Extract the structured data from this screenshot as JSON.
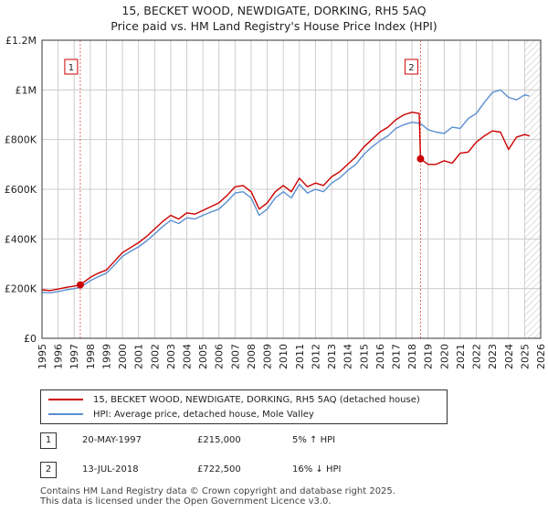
{
  "title_line1": "15, BECKET WOOD, NEWDIGATE, DORKING, RH5 5AQ",
  "title_line2": "Price paid vs. HM Land Registry's House Price Index (HPI)",
  "colors": {
    "property": "#cc0000",
    "hpi": "#5b8fd0",
    "grid": "#cccccc",
    "marker": "#cc0000",
    "hatch": "#bbbbbb"
  },
  "chart_data": {
    "type": "line",
    "xlim": [
      1995,
      2026
    ],
    "ylim": [
      0,
      1200000
    ],
    "ytick_values": [
      0,
      200000,
      400000,
      600000,
      800000,
      1000000,
      1200000
    ],
    "ytick_labels": [
      "£0",
      "£200K",
      "£400K",
      "£600K",
      "£800K",
      "£1M",
      "£1.2M"
    ],
    "xtick_labels": [
      "1995",
      "1996",
      "1997",
      "1998",
      "1999",
      "2000",
      "2001",
      "2002",
      "2003",
      "2004",
      "2005",
      "2006",
      "2007",
      "2008",
      "2009",
      "2010",
      "2011",
      "2012",
      "2013",
      "2014",
      "2015",
      "2016",
      "2017",
      "2018",
      "2019",
      "2020",
      "2021",
      "2022",
      "2023",
      "2024",
      "2025",
      "2026"
    ],
    "grid": true,
    "hatched_future_from": 2025.0,
    "series": [
      {
        "name": "15, BECKET WOOD, NEWDIGATE, DORKING, RH5 5AQ (detached house)",
        "x": [
          1995.0,
          1995.5,
          1996.0,
          1996.5,
          1997.0,
          1997.38,
          1998.0,
          1998.5,
          1999.0,
          1999.5,
          2000.0,
          2000.5,
          2001.0,
          2001.5,
          2002.0,
          2002.5,
          2003.0,
          2003.5,
          2004.0,
          2004.5,
          2005.0,
          2005.5,
          2006.0,
          2006.5,
          2007.0,
          2007.5,
          2008.0,
          2008.5,
          2009.0,
          2009.5,
          2010.0,
          2010.5,
          2011.0,
          2011.5,
          2012.0,
          2012.5,
          2013.0,
          2013.5,
          2014.0,
          2014.5,
          2015.0,
          2015.5,
          2016.0,
          2016.5,
          2017.0,
          2017.5,
          2018.0,
          2018.45,
          2018.53,
          2019.0,
          2019.5,
          2020.0,
          2020.5,
          2021.0,
          2021.5,
          2022.0,
          2022.5,
          2023.0,
          2023.5,
          2024.0,
          2024.5,
          2025.0,
          2025.3
        ],
        "values": [
          195000,
          192000,
          198000,
          205000,
          210000,
          215000,
          245000,
          262000,
          275000,
          310000,
          345000,
          365000,
          385000,
          410000,
          440000,
          470000,
          495000,
          480000,
          505000,
          500000,
          515000,
          530000,
          545000,
          575000,
          610000,
          615000,
          590000,
          520000,
          545000,
          590000,
          615000,
          590000,
          645000,
          610000,
          625000,
          615000,
          650000,
          670000,
          700000,
          730000,
          770000,
          800000,
          830000,
          850000,
          880000,
          900000,
          910000,
          905000,
          722500,
          700000,
          700000,
          715000,
          705000,
          745000,
          750000,
          790000,
          815000,
          835000,
          830000,
          760000,
          810000,
          820000,
          815000
        ]
      },
      {
        "name": "HPI: Average price, detached house, Mole Valley",
        "x": [
          1995.0,
          1995.5,
          1996.0,
          1996.5,
          1997.0,
          1997.38,
          1998.0,
          1998.5,
          1999.0,
          1999.5,
          2000.0,
          2000.5,
          2001.0,
          2001.5,
          2002.0,
          2002.5,
          2003.0,
          2003.5,
          2004.0,
          2004.5,
          2005.0,
          2005.5,
          2006.0,
          2006.5,
          2007.0,
          2007.5,
          2008.0,
          2008.5,
          2009.0,
          2009.5,
          2010.0,
          2010.5,
          2011.0,
          2011.5,
          2012.0,
          2012.5,
          2013.0,
          2013.5,
          2014.0,
          2014.5,
          2015.0,
          2015.5,
          2016.0,
          2016.5,
          2017.0,
          2017.5,
          2018.0,
          2018.53,
          2019.0,
          2019.5,
          2020.0,
          2020.5,
          2021.0,
          2021.5,
          2022.0,
          2022.5,
          2023.0,
          2023.5,
          2024.0,
          2024.5,
          2025.0,
          2025.3
        ],
        "values": [
          185000,
          183000,
          188000,
          195000,
          200000,
          205000,
          232000,
          248000,
          262000,
          295000,
          330000,
          350000,
          368000,
          392000,
          420000,
          450000,
          475000,
          462000,
          485000,
          480000,
          495000,
          508000,
          520000,
          550000,
          585000,
          590000,
          565000,
          495000,
          520000,
          565000,
          590000,
          565000,
          620000,
          585000,
          600000,
          590000,
          625000,
          645000,
          675000,
          700000,
          740000,
          770000,
          795000,
          815000,
          845000,
          860000,
          870000,
          865000,
          840000,
          830000,
          825000,
          850000,
          845000,
          885000,
          905000,
          950000,
          990000,
          1000000,
          970000,
          960000,
          980000,
          975000
        ]
      }
    ],
    "sale_points": [
      {
        "label": "1",
        "x": 1997.38,
        "value": 215000
      },
      {
        "label": "2",
        "x": 2018.53,
        "value": 722500
      }
    ]
  },
  "legend": {
    "property_label": "15, BECKET WOOD, NEWDIGATE, DORKING, RH5 5AQ (detached house)",
    "hpi_label": "HPI: Average price, detached house, Mole Valley"
  },
  "sales": [
    {
      "num": "1",
      "date": "20-MAY-1997",
      "price": "£215,000",
      "hpi": "5% ↑ HPI"
    },
    {
      "num": "2",
      "date": "13-JUL-2018",
      "price": "£722,500",
      "hpi": "16% ↓ HPI"
    }
  ],
  "footer": {
    "line1": "Contains HM Land Registry data © Crown copyright and database right 2025.",
    "line2": "This data is licensed under the Open Government Licence v3.0."
  }
}
